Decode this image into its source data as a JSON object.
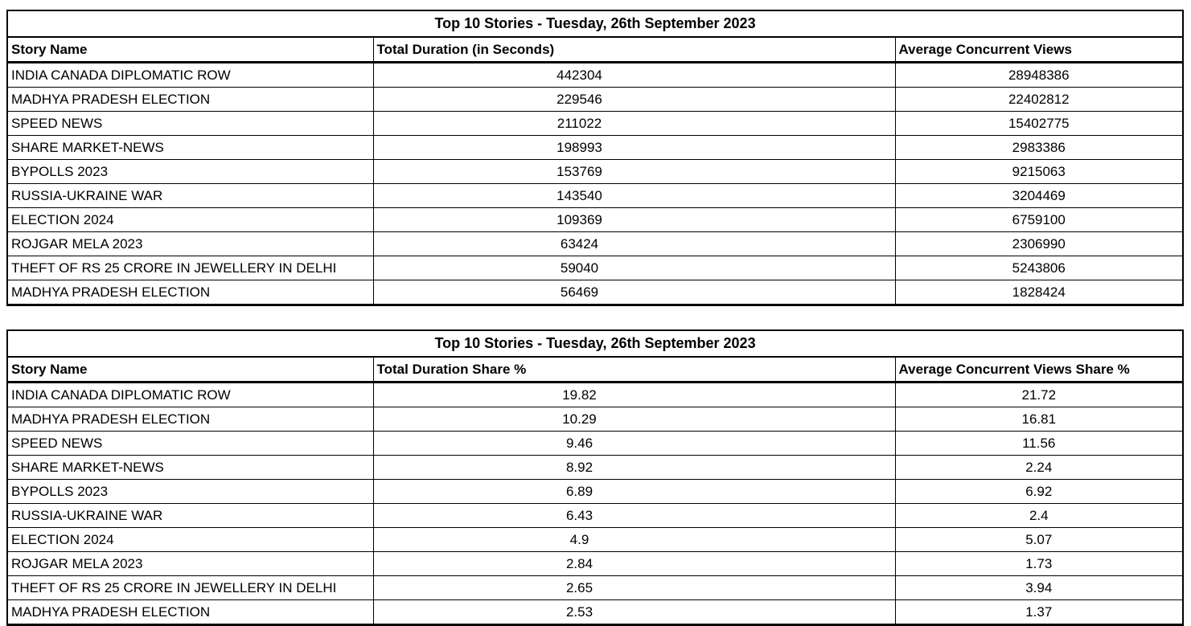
{
  "tables": [
    {
      "title": "Top 10 Stories - Tuesday, 26th September 2023",
      "columns": [
        "Story Name",
        "Total Duration (in Seconds)",
        "Average Concurrent Views"
      ],
      "rows": [
        [
          "INDIA CANADA DIPLOMATIC ROW",
          "442304",
          "28948386"
        ],
        [
          "MADHYA PRADESH ELECTION",
          "229546",
          "22402812"
        ],
        [
          "SPEED NEWS",
          "211022",
          "15402775"
        ],
        [
          "SHARE MARKET-NEWS",
          "198993",
          "2983386"
        ],
        [
          "BYPOLLS 2023",
          "153769",
          "9215063"
        ],
        [
          "RUSSIA-UKRAINE WAR",
          "143540",
          "3204469"
        ],
        [
          "ELECTION 2024",
          "109369",
          "6759100"
        ],
        [
          "ROJGAR MELA 2023",
          "63424",
          "2306990"
        ],
        [
          "THEFT OF RS 25 CRORE IN JEWELLERY IN DELHI",
          "59040",
          "5243806"
        ],
        [
          "MADHYA PRADESH ELECTION",
          "56469",
          "1828424"
        ]
      ]
    },
    {
      "title": "Top 10 Stories - Tuesday, 26th September 2023",
      "columns": [
        "Story Name",
        "Total Duration Share %",
        "Average Concurrent Views Share %"
      ],
      "rows": [
        [
          "INDIA CANADA DIPLOMATIC ROW",
          "19.82",
          "21.72"
        ],
        [
          "MADHYA PRADESH ELECTION",
          "10.29",
          "16.81"
        ],
        [
          "SPEED NEWS",
          "9.46",
          "11.56"
        ],
        [
          "SHARE MARKET-NEWS",
          "8.92",
          "2.24"
        ],
        [
          "BYPOLLS 2023",
          "6.89",
          "6.92"
        ],
        [
          "RUSSIA-UKRAINE WAR",
          "6.43",
          "2.4"
        ],
        [
          "ELECTION 2024",
          "4.9",
          "5.07"
        ],
        [
          "ROJGAR MELA 2023",
          "2.84",
          "1.73"
        ],
        [
          "THEFT OF RS 25 CRORE IN JEWELLERY IN DELHI",
          "2.65",
          "3.94"
        ],
        [
          "MADHYA PRADESH ELECTION",
          "2.53",
          "1.37"
        ]
      ]
    }
  ],
  "colors": {
    "text": "#000000",
    "border": "#000000",
    "background": "#ffffff"
  },
  "cell_names": [
    "story-name-cell",
    "duration-value-cell",
    "views-value-cell"
  ]
}
